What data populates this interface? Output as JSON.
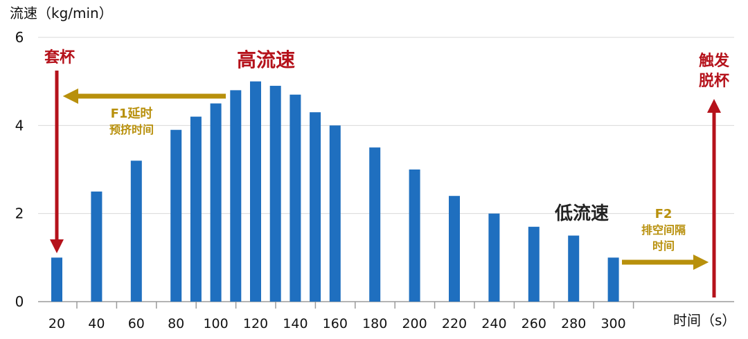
{
  "chart_data": {
    "type": "bar",
    "ylabel": "流速（kg/min）",
    "xlabel": "时间（s）",
    "ylim": [
      0,
      6
    ],
    "xlim": [
      20,
      340
    ],
    "yticks": [
      0,
      2,
      4,
      6
    ],
    "xticks": [
      20,
      40,
      60,
      80,
      100,
      120,
      140,
      160,
      180,
      200,
      220,
      240,
      260,
      280,
      300
    ],
    "grid": true,
    "bar_color": "#1f6fbf",
    "points": [
      {
        "x": 20,
        "y": 1.0
      },
      {
        "x": 40,
        "y": 2.5
      },
      {
        "x": 60,
        "y": 3.2
      },
      {
        "x": 80,
        "y": 3.9
      },
      {
        "x": 90,
        "y": 4.2
      },
      {
        "x": 100,
        "y": 4.5
      },
      {
        "x": 110,
        "y": 4.8
      },
      {
        "x": 120,
        "y": 5.0
      },
      {
        "x": 130,
        "y": 4.9
      },
      {
        "x": 140,
        "y": 4.7
      },
      {
        "x": 150,
        "y": 4.3
      },
      {
        "x": 160,
        "y": 4.0
      },
      {
        "x": 180,
        "y": 3.5
      },
      {
        "x": 200,
        "y": 3.0
      },
      {
        "x": 220,
        "y": 2.4
      },
      {
        "x": 240,
        "y": 2.0
      },
      {
        "x": 260,
        "y": 1.7
      },
      {
        "x": 280,
        "y": 1.5
      },
      {
        "x": 300,
        "y": 1.0
      }
    ],
    "annotations": {
      "cup_on": {
        "text": "套杯",
        "color": "#b5121b"
      },
      "high_flow": {
        "text": "高流速",
        "color": "#b5121b"
      },
      "low_flow": {
        "text": "低流速",
        "color": "#222222"
      },
      "f1": {
        "line1": "F1延时",
        "line2": "预挤时间",
        "color": "#b8900c"
      },
      "f2": {
        "line1": "F2",
        "line2": "排空间隔",
        "line3": "时间",
        "color": "#b8900c"
      },
      "detach": {
        "line1": "触发",
        "line2": "脱杯",
        "color": "#b5121b"
      }
    }
  }
}
